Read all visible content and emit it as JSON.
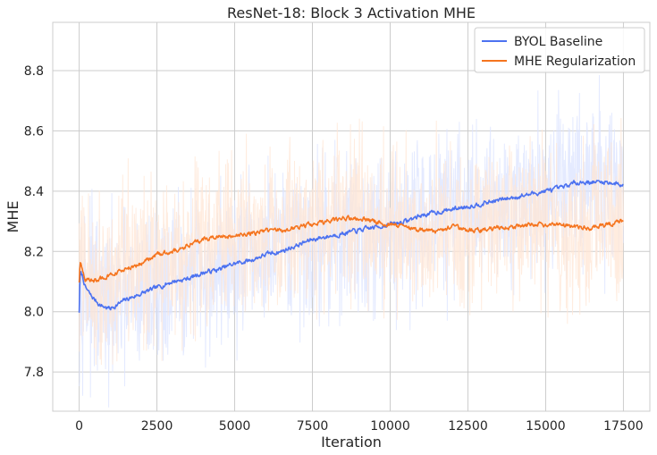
{
  "chart_data": {
    "type": "line",
    "title": "ResNet-18: Block 3 Activation MHE",
    "xlabel": "Iteration",
    "ylabel": "MHE",
    "xlim": [
      -850,
      18350
    ],
    "ylim": [
      7.67,
      8.96
    ],
    "xticks": [
      0,
      2500,
      5000,
      7500,
      10000,
      12500,
      15000,
      17500
    ],
    "xtick_labels": [
      "0",
      "2500",
      "5000",
      "7500",
      "10000",
      "12500",
      "15000",
      "17500"
    ],
    "yticks": [
      7.8,
      8.0,
      8.2,
      8.4,
      8.6,
      8.8
    ],
    "ytick_labels": [
      "7.8",
      "8.0",
      "8.2",
      "8.4",
      "8.6",
      "8.8"
    ],
    "grid": true,
    "legend_position": "top-right",
    "raw_noise_amplitude": 0.27,
    "series": [
      {
        "name": "BYOL Baseline",
        "color": "#4c72f0",
        "raw_color": "#dbe3ff",
        "x": [
          0,
          30,
          100,
          200,
          400,
          700,
          1000,
          1500,
          2000,
          2500,
          3000,
          3500,
          4000,
          4500,
          5000,
          5500,
          6000,
          6500,
          7000,
          7500,
          8000,
          8500,
          9000,
          9500,
          10000,
          10500,
          11000,
          11500,
          12000,
          12500,
          13000,
          13500,
          14000,
          14500,
          15000,
          15500,
          16000,
          16500,
          17000,
          17500
        ],
        "y": [
          8.0,
          8.13,
          8.12,
          8.08,
          8.05,
          8.02,
          8.01,
          8.04,
          8.06,
          8.08,
          8.1,
          8.11,
          8.13,
          8.14,
          8.16,
          8.17,
          8.19,
          8.2,
          8.22,
          8.24,
          8.25,
          8.26,
          8.27,
          8.28,
          8.29,
          8.3,
          8.32,
          8.33,
          8.34,
          8.35,
          8.36,
          8.37,
          8.38,
          8.39,
          8.4,
          8.41,
          8.43,
          8.43,
          8.43,
          8.42
        ]
      },
      {
        "name": "MHE Regularization",
        "color": "#f5751f",
        "raw_color": "#ffe6d4",
        "x": [
          0,
          30,
          100,
          200,
          400,
          700,
          1000,
          1500,
          2000,
          2500,
          3000,
          3500,
          4000,
          4500,
          5000,
          5500,
          6000,
          6500,
          7000,
          7500,
          8000,
          8500,
          9000,
          9500,
          10000,
          10500,
          11000,
          11500,
          12000,
          12500,
          13000,
          13500,
          14000,
          14500,
          15000,
          15500,
          16000,
          16500,
          17000,
          17500
        ],
        "y": [
          8.1,
          8.16,
          8.14,
          8.11,
          8.1,
          8.11,
          8.12,
          8.14,
          8.16,
          8.19,
          8.2,
          8.22,
          8.24,
          8.25,
          8.25,
          8.26,
          8.27,
          8.27,
          8.28,
          8.29,
          8.3,
          8.31,
          8.31,
          8.3,
          8.29,
          8.28,
          8.27,
          8.27,
          8.28,
          8.27,
          8.27,
          8.28,
          8.28,
          8.29,
          8.29,
          8.29,
          8.28,
          8.28,
          8.29,
          8.3
        ]
      }
    ]
  }
}
